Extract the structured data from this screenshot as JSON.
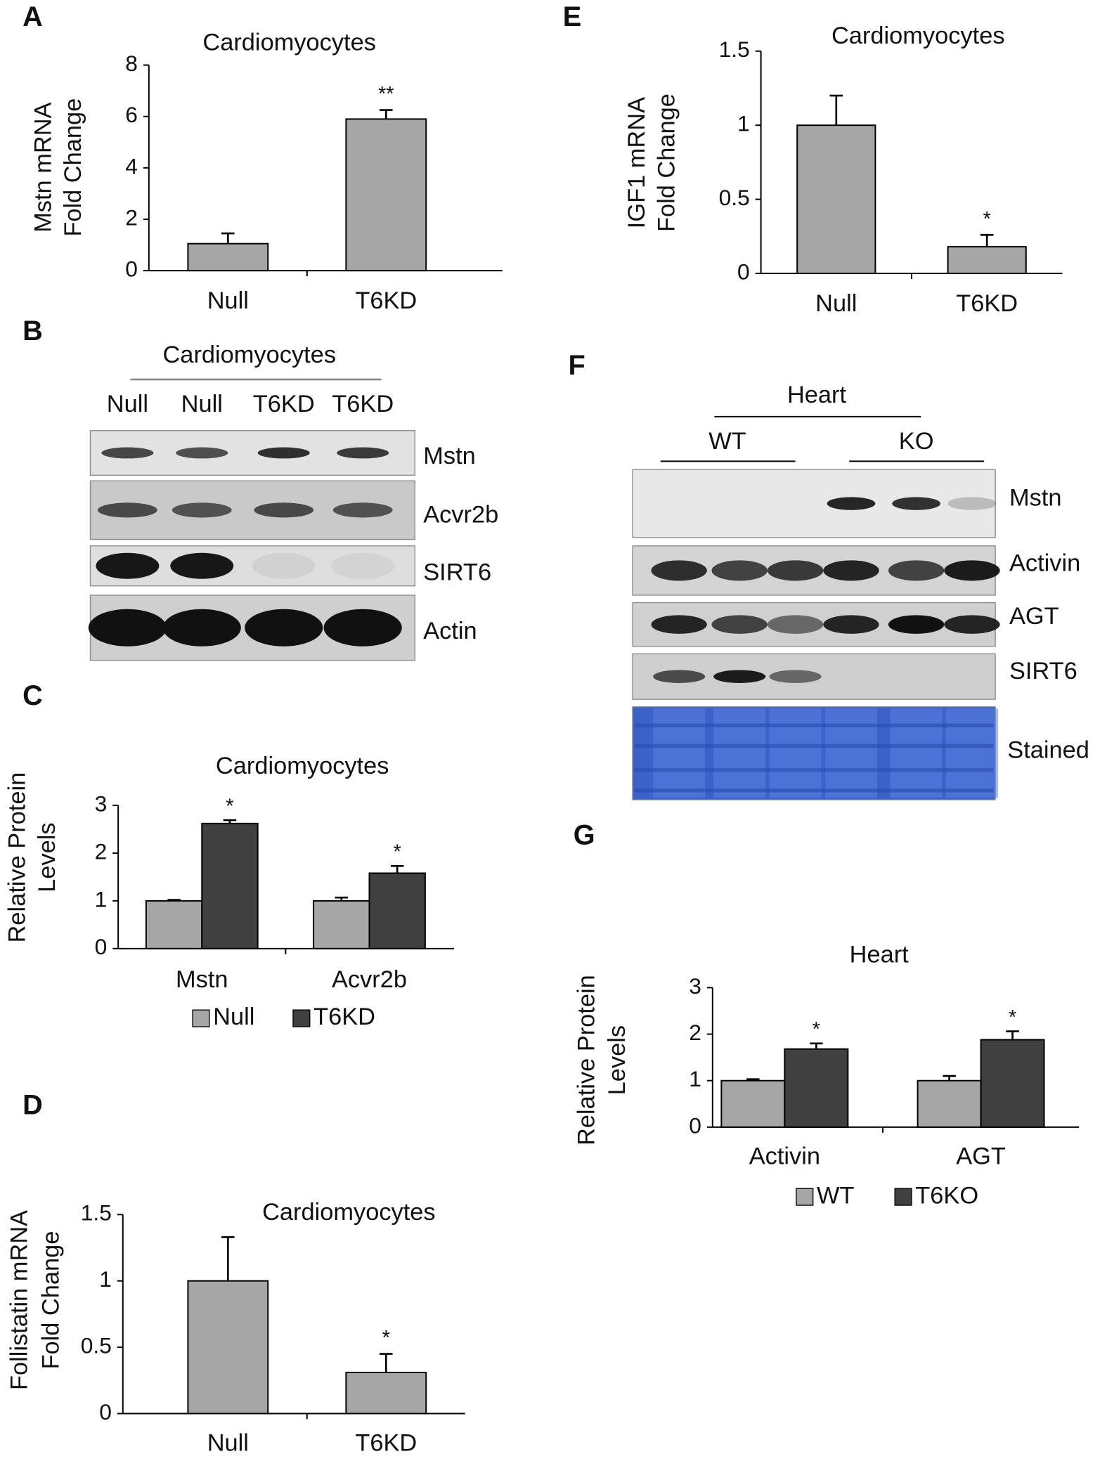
{
  "chart_data": [
    {
      "type": "bar",
      "panel": "A",
      "title": "Cardiomyocytes",
      "ylabel": [
        "Mstn mRNA",
        "Fold Change"
      ],
      "categories": [
        "Null",
        "T6KD"
      ],
      "values": [
        1.05,
        5.9
      ],
      "errors": [
        0.4,
        0.35
      ],
      "color": "#a6a6a6",
      "annotations": [
        {
          "index": 1,
          "text": "**"
        }
      ],
      "ylim": [
        0,
        8
      ],
      "yticks": [
        0,
        2,
        4,
        6,
        8
      ]
    },
    {
      "type": "grouped-bar",
      "panel": "C",
      "title": "Cardiomyocytes",
      "ylabel": [
        "Relative Protein",
        "Levels"
      ],
      "categories": [
        "Mstn",
        "Acvr2b"
      ],
      "series": [
        {
          "name": "Null",
          "color": "#a6a6a6",
          "values": [
            1.0,
            1.0
          ],
          "errors": [
            0.02,
            0.07
          ]
        },
        {
          "name": "T6KD",
          "color": "#404040",
          "values": [
            2.62,
            1.58
          ],
          "errors": [
            0.07,
            0.15
          ],
          "annotations": [
            "*",
            "*"
          ]
        }
      ],
      "ylim": [
        0,
        3
      ],
      "yticks": [
        0,
        1,
        2,
        3
      ],
      "legend": "bottom"
    },
    {
      "type": "bar",
      "panel": "D",
      "title": "Cardiomyocytes",
      "ylabel": [
        "Follistatin mRNA",
        "Fold Change"
      ],
      "categories": [
        "Null",
        "T6KD"
      ],
      "values": [
        1.0,
        0.31
      ],
      "errors": [
        0.33,
        0.14
      ],
      "color": "#a6a6a6",
      "annotations": [
        {
          "index": 1,
          "text": "*"
        }
      ],
      "ylim": [
        0,
        1.5
      ],
      "yticks": [
        0,
        0.5,
        1,
        1.5
      ]
    },
    {
      "type": "bar",
      "panel": "E",
      "title": "Cardiomyocytes",
      "ylabel": [
        "IGF1 mRNA",
        "Fold Change"
      ],
      "categories": [
        "Null",
        "T6KD"
      ],
      "values": [
        1.0,
        0.18
      ],
      "errors": [
        0.2,
        0.08
      ],
      "color": "#a6a6a6",
      "annotations": [
        {
          "index": 1,
          "text": "*"
        }
      ],
      "ylim": [
        0,
        1.5
      ],
      "yticks": [
        0,
        0.5,
        1,
        1.5
      ]
    },
    {
      "type": "grouped-bar",
      "panel": "G",
      "title": "Heart",
      "ylabel": [
        "Relative Protein",
        "Levels"
      ],
      "categories": [
        "Activin",
        "AGT"
      ],
      "series": [
        {
          "name": "WT",
          "color": "#a6a6a6",
          "values": [
            1.0,
            1.0
          ],
          "errors": [
            0.03,
            0.1
          ]
        },
        {
          "name": "T6KO",
          "color": "#404040",
          "values": [
            1.68,
            1.88
          ],
          "errors": [
            0.12,
            0.18
          ],
          "annotations": [
            "*",
            "*"
          ]
        }
      ],
      "ylim": [
        0,
        3
      ],
      "yticks": [
        0,
        1,
        2,
        3
      ],
      "legend": "bottom"
    }
  ],
  "blots": [
    {
      "panel": "B",
      "title": "Cardiomyocytes",
      "lanes": [
        "Null",
        "Null",
        "T6KD",
        "T6KD"
      ],
      "rows": [
        "Mstn",
        "Acvr2b",
        "SIRT6",
        "Actin"
      ]
    },
    {
      "panel": "F",
      "title": "Heart",
      "groups": [
        "WT",
        "KO"
      ],
      "rows": [
        "Mstn",
        "Activin",
        "AGT",
        "SIRT6",
        "Stained"
      ]
    }
  ]
}
